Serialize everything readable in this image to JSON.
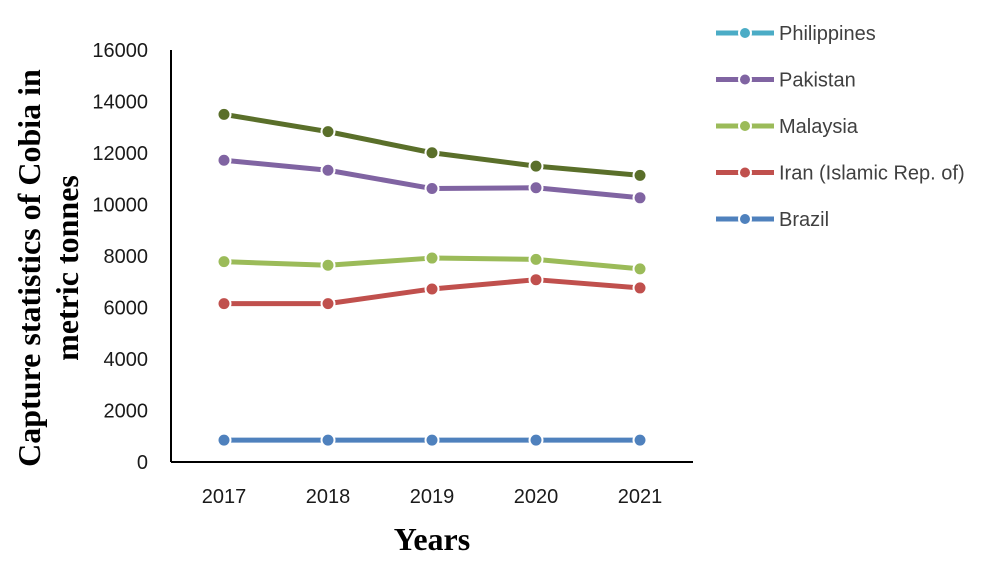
{
  "chart_data": {
    "type": "line",
    "title": "",
    "xlabel": "Years",
    "ylabel_lines": [
      "Capture statistics of Cobia in",
      "metric tonnes"
    ],
    "categories": [
      "2017",
      "2018",
      "2019",
      "2020",
      "2021"
    ],
    "ylim": [
      0,
      16000
    ],
    "yticks": [
      0,
      2000,
      4000,
      6000,
      8000,
      10000,
      12000,
      14000,
      16000
    ],
    "ytick_labels": [
      "0",
      "2000",
      "4000",
      "6000",
      "8000",
      "10000",
      "12000",
      "14000",
      "16000"
    ],
    "grid": false,
    "legend_position": "right",
    "series": [
      {
        "name": "Brazil",
        "color": "#4f81bd",
        "values": [
          850,
          850,
          850,
          850,
          850
        ]
      },
      {
        "name": "Iran (Islamic Rep. of)",
        "color": "#c0504d",
        "values": [
          6150,
          6150,
          6720,
          7080,
          6760
        ]
      },
      {
        "name": "Malaysia",
        "color": "#9bbb59",
        "values": [
          7780,
          7640,
          7920,
          7870,
          7500
        ]
      },
      {
        "name": "Pakistan",
        "color": "#8064a2",
        "values": [
          11720,
          11330,
          10620,
          10650,
          10260
        ]
      },
      {
        "name": "Philippines",
        "color": "#4bacc6",
        "values": [
          13500,
          12830,
          12010,
          11490,
          11130
        ],
        "line_color": "#5a6f2a"
      }
    ]
  }
}
